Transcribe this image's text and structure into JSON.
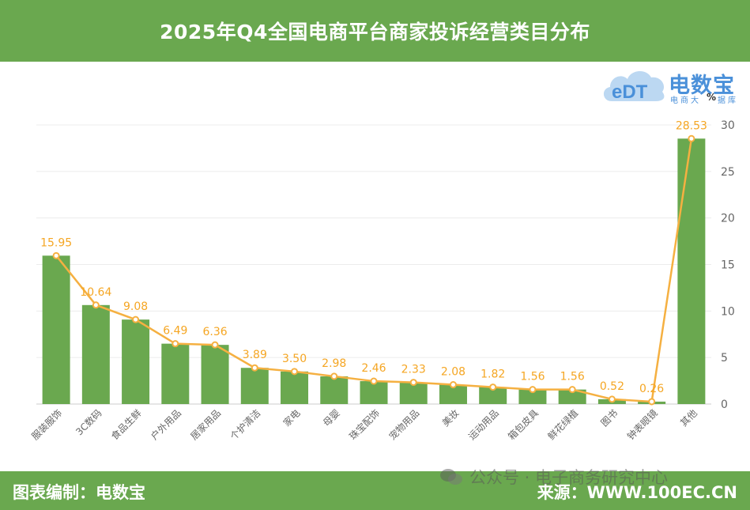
{
  "header": {
    "title": "2025年Q4全国电商平台商家投诉经营类目分布"
  },
  "logo": {
    "mark": "eDT",
    "name": "电数宝",
    "sub": "电商大",
    "sub2": "据库",
    "pct": "%"
  },
  "footer": {
    "left": "图表编制：电数宝",
    "right": "来源：WWW.100EC.CN"
  },
  "watermark": {
    "text": "公众号 · 电子商务研究中心",
    "icon": "wechat-icon"
  },
  "chart_data": {
    "type": "bar",
    "categories": [
      "服装服饰",
      "3C数码",
      "食品生鲜",
      "户外用品",
      "居家用品",
      "个护清洁",
      "家电",
      "母婴",
      "珠宝配饰",
      "宠物用品",
      "美妆",
      "运动用品",
      "箱包皮具",
      "鲜花绿植",
      "图书",
      "钟表眼镜",
      "其他"
    ],
    "values": [
      15.95,
      10.64,
      9.08,
      6.49,
      6.36,
      3.89,
      3.5,
      2.98,
      2.46,
      2.33,
      2.08,
      1.82,
      1.56,
      1.56,
      0.52,
      0.26,
      28.53
    ],
    "value_labels": [
      "15.95",
      "10.64",
      "9.08",
      "6.49",
      "6.36",
      "3.89",
      "3.50",
      "2.98",
      "2.46",
      "2.33",
      "2.08",
      "1.82",
      "1.56",
      "1.56",
      "0.52",
      "0.26",
      "28.53"
    ],
    "line_overlay": true,
    "y_ticks": [
      "0",
      "5",
      "10",
      "15",
      "20",
      "25",
      "30"
    ],
    "ylim": [
      0,
      30
    ],
    "y_axis_side": "right",
    "grid": true,
    "colors": {
      "bar": "#6aa84f",
      "line": "#f5b041",
      "label": "#f5a623",
      "axis_text": "#666666",
      "grid": "#ececec"
    }
  }
}
